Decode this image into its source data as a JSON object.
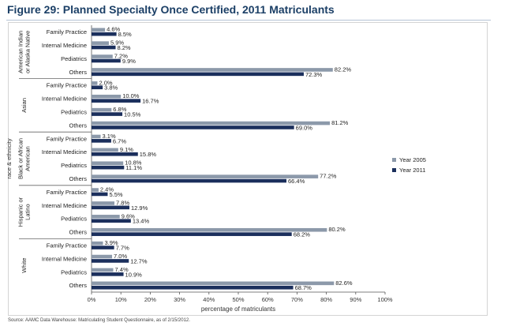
{
  "title": "Figure 29: Planned Specialty Once Certified, 2011 Matriculants",
  "source": "Source: AAMC Data Warehouse: Matriculating Student Questionnaire, as of 2/15/2012.",
  "chart_data": {
    "type": "bar",
    "orientation": "horizontal",
    "ylabel": "race & ethnicity",
    "xlabel": "percentage of matriculants",
    "xlim": [
      0,
      100
    ],
    "xticks": [
      "0%",
      "10%",
      "20%",
      "30%",
      "40%",
      "50%",
      "60%",
      "70%",
      "80%",
      "90%",
      "100%"
    ],
    "categories": [
      "Family Practice",
      "Internal Medicine",
      "Pediatrics",
      "Others"
    ],
    "legend": "right",
    "series": [
      {
        "name": "Year 2005",
        "color": "#8c99aa"
      },
      {
        "name": "Year 2011",
        "color": "#1b2f5c"
      }
    ],
    "groups": [
      {
        "name": "American Indian or Alaska Native",
        "label_lines": [
          "American Indian",
          "or Alaska Native"
        ],
        "values_2005": [
          4.6,
          5.9,
          7.2,
          82.2
        ],
        "values_2011": [
          8.5,
          8.2,
          9.9,
          72.3
        ],
        "labels_2005": [
          "4.6%",
          "5.9%",
          "7.2%",
          "82.2%"
        ],
        "labels_2011": [
          "8.5%",
          "8.2%",
          "9.9%",
          "72.3%"
        ]
      },
      {
        "name": "Asian",
        "label_lines": [
          "Asian"
        ],
        "values_2005": [
          2.0,
          10.0,
          6.8,
          81.2
        ],
        "values_2011": [
          3.8,
          16.7,
          10.5,
          69.0
        ],
        "labels_2005": [
          "2.0%",
          "10.0%",
          "6.8%",
          "81.2%"
        ],
        "labels_2011": [
          "3.8%",
          "16.7%",
          "10.5%",
          "69.0%"
        ]
      },
      {
        "name": "Black or African American",
        "label_lines": [
          "Black or African",
          "American"
        ],
        "values_2005": [
          3.1,
          9.1,
          10.8,
          77.2
        ],
        "values_2011": [
          6.7,
          15.8,
          11.1,
          66.4
        ],
        "labels_2005": [
          "3.1%",
          "9.1%",
          "10.8%",
          "77.2%"
        ],
        "labels_2011": [
          "6.7%",
          "15.8%",
          "11.1%",
          "66.4%"
        ]
      },
      {
        "name": "Hispanic or Latino",
        "label_lines": [
          "Hispanic or",
          "Latino"
        ],
        "values_2005": [
          2.4,
          7.8,
          9.6,
          80.2
        ],
        "values_2011": [
          5.5,
          12.9,
          13.4,
          68.2
        ],
        "labels_2005": [
          "2.4%",
          "7.8%",
          "9.6%",
          "80.2%"
        ],
        "labels_2011": [
          "5.5%",
          "12.9%",
          "13.4%",
          "68.2%"
        ]
      },
      {
        "name": "White",
        "label_lines": [
          "White"
        ],
        "values_2005": [
          3.9,
          7.0,
          7.4,
          82.6
        ],
        "values_2011": [
          7.7,
          12.7,
          10.9,
          68.7
        ],
        "labels_2005": [
          "3.9%",
          "7.0%",
          "7.4%",
          "82.6%"
        ],
        "labels_2011": [
          "7.7%",
          "12.7%",
          "10.9%",
          "68.7%"
        ]
      }
    ]
  }
}
